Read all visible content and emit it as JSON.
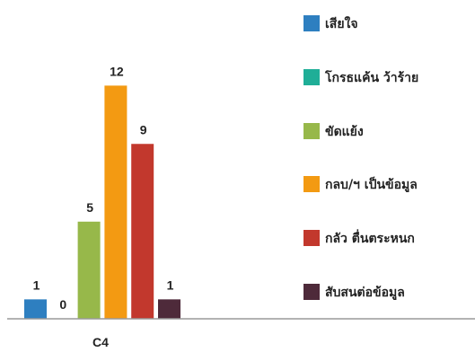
{
  "chart_data": {
    "type": "bar",
    "categories": [
      "C4"
    ],
    "ylim": [
      0,
      13
    ],
    "grid": false,
    "legend_placement": "right",
    "series": [
      {
        "name": "เสียใจ",
        "values": [
          1
        ],
        "color": "#2E7FC0"
      },
      {
        "name": "โกรธแค้น ว้าร้าย",
        "values": [
          0
        ],
        "color": "#1FAE97"
      },
      {
        "name": "ขัดแย้ง",
        "values": [
          5
        ],
        "color": "#97B84A"
      },
      {
        "name": "กลบ/ฯ เป็นข้อมูล",
        "values": [
          12
        ],
        "color": "#F39A12"
      },
      {
        "name": "กลัว ตื่นตระหนก",
        "values": [
          9
        ],
        "color": "#C2382D"
      },
      {
        "name": "สับสนต่อข้อมูล",
        "values": [
          1
        ],
        "color": "#4E2A3A"
      }
    ]
  }
}
